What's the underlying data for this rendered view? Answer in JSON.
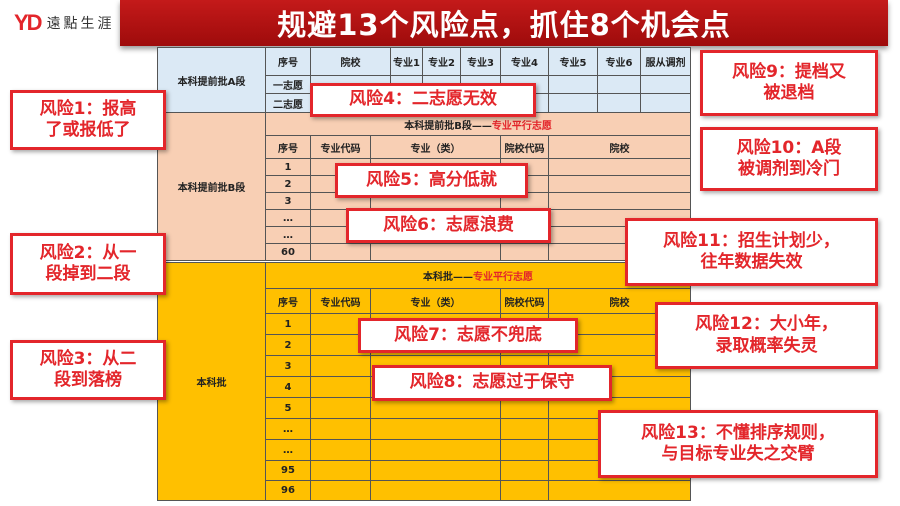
{
  "logo": {
    "mark": "YD",
    "text": "遠點生涯"
  },
  "title": "规避13个风险点，抓住8个机会点",
  "sectionA": {
    "label": "本科提前批A段",
    "headers": [
      "序号",
      "院校",
      "专业1",
      "专业2",
      "专业3",
      "专业4",
      "专业5",
      "专业6",
      "服从调剂"
    ],
    "rows": [
      "一志愿",
      "二志愿"
    ]
  },
  "sectionB": {
    "label": "本科提前批B段",
    "title": "本科提前批B段——",
    "title_red": "专业平行志愿",
    "headers": [
      "序号",
      "专业代码",
      "专业（类）",
      "院校代码",
      "院校"
    ],
    "rows": [
      "1",
      "2",
      "3",
      "…",
      "…",
      "60"
    ]
  },
  "sectionC": {
    "label": "本科批",
    "title": "本科批——",
    "title_red": "专业平行志愿",
    "headers": [
      "序号",
      "专业代码",
      "专业（类）",
      "院校代码",
      "院校"
    ],
    "rows": [
      "1",
      "2",
      "3",
      "4",
      "5",
      "…",
      "…",
      "95",
      "96"
    ]
  },
  "risks": [
    "风险1：报高\n了或报低了",
    "风险2：从一\n段掉到二段",
    "风险3：从二\n段到落榜",
    "风险4：二志愿无效",
    "风险5：高分低就",
    "风险6：志愿浪费",
    "风险7：志愿不兜底",
    "风险8：志愿过于保守",
    "风险9：提档又\n被退档",
    "风险10：A段\n被调剂到冷门",
    "风险11：招生计划少，\n往年数据失效",
    "风险12：大小年，\n录取概率失灵",
    "风险13：不懂排序规则，\n与目标专业失之交臂"
  ]
}
